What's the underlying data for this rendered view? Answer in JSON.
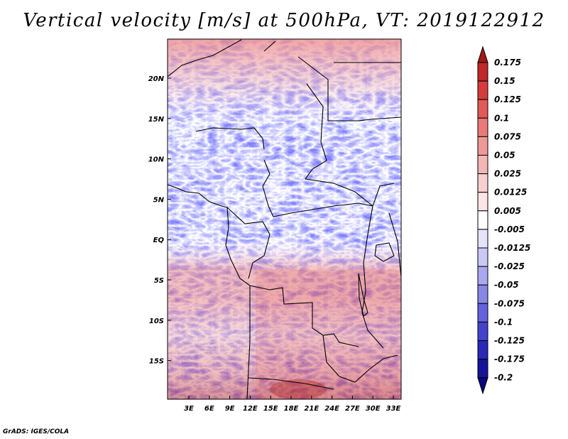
{
  "title": "Vertical velocity [m/s] at 500hPa, VT: 2019122912",
  "footer": "GrADS: IGES/COLA",
  "map": {
    "lat_labels": [
      {
        "label": "20N",
        "lat": 20
      },
      {
        "label": "15N",
        "lat": 15
      },
      {
        "label": "10N",
        "lat": 10
      },
      {
        "label": "5N",
        "lat": 5
      },
      {
        "label": "EQ",
        "lat": 0
      },
      {
        "label": "5S",
        "lat": -5
      },
      {
        "label": "10S",
        "lat": -10
      },
      {
        "label": "15S",
        "lat": -15
      }
    ],
    "lon_labels": [
      {
        "label": "3E",
        "lon": 3
      },
      {
        "label": "6E",
        "lon": 6
      },
      {
        "label": "9E",
        "lon": 9
      },
      {
        "label": "12E",
        "lon": 12
      },
      {
        "label": "15E",
        "lon": 15
      },
      {
        "label": "18E",
        "lon": 18
      },
      {
        "label": "21E",
        "lon": 21
      },
      {
        "label": "24E",
        "lon": 24
      },
      {
        "label": "27E",
        "lon": 27
      },
      {
        "label": "30E",
        "lon": 30
      },
      {
        "label": "33E",
        "lon": 33
      }
    ]
  },
  "colorbar": {
    "labels": [
      "0.175",
      "0.15",
      "0.125",
      "0.1",
      "0.075",
      "0.05",
      "0.025",
      "0.0125",
      "0.005",
      "-0.005",
      "-0.0125",
      "-0.025",
      "-0.05",
      "-0.075",
      "-0.1",
      "-0.125",
      "-0.175",
      "-0.2"
    ],
    "colors": [
      "#a01818",
      "#c0282a",
      "#d63c3c",
      "#e35a57",
      "#ea7a78",
      "#ef9997",
      "#f4b6b5",
      "#f8d0cf",
      "#fbe6e5",
      "#ffffff",
      "#e4e3fb",
      "#cac9f6",
      "#aaa8f0",
      "#8886e6",
      "#6462dc",
      "#4442cc",
      "#2a28b6",
      "#16139a",
      "#0a0880"
    ]
  }
}
